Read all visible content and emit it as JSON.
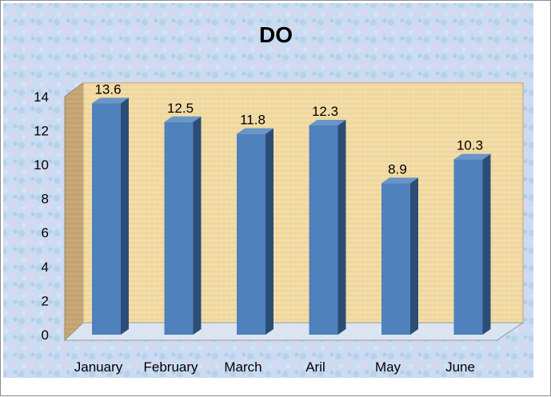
{
  "chart_data": {
    "type": "bar",
    "title": "DO",
    "categories": [
      "January",
      "February",
      "March",
      "Aril",
      "May",
      "June"
    ],
    "values": [
      13.6,
      12.5,
      11.8,
      12.3,
      8.9,
      10.3
    ],
    "data_labels": [
      "13.6",
      "12.5",
      "11.8",
      "12.3",
      "8.9",
      "10.3"
    ],
    "y_ticks": [
      "0",
      "2",
      "4",
      "6",
      "8",
      "10",
      "12",
      "14"
    ],
    "xlabel": "",
    "ylabel": "",
    "ylim": [
      0,
      14
    ],
    "grid": false,
    "legend": "none",
    "three_d": true
  },
  "colors": {
    "bar_front": "#4f81bd",
    "bar_side": "#2c4d75",
    "bar_top": "#6a95c8",
    "wall": "#f2dca6",
    "side_wall": "#c9ad79",
    "floor": "#dfe8f3",
    "background": "#c7daf0"
  }
}
